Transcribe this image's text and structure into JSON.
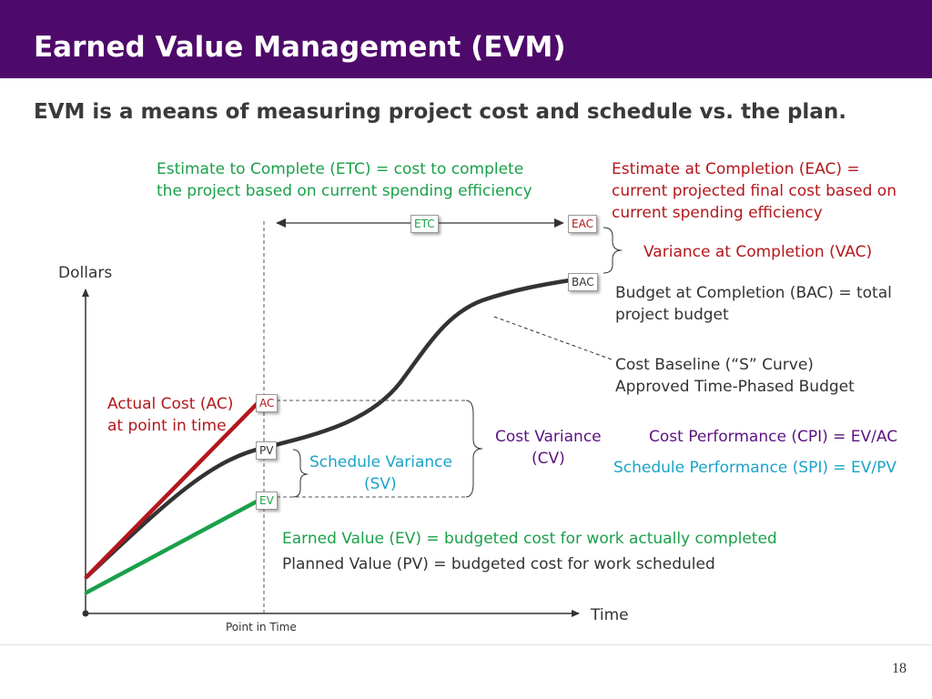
{
  "slide": {
    "title": "Earned Value Management (EVM)",
    "subtitle": "EVM is a means of measuring project cost and schedule vs. the plan.",
    "page_number": "18"
  },
  "labels": {
    "etc_line1": "Estimate to Complete (ETC) = cost to complete",
    "etc_line2": "the project based on current spending efficiency",
    "eac_line1": "Estimate at Completion (EAC) =",
    "eac_line2": "current projected final cost based on",
    "eac_line3": "current spending efficiency",
    "vac": "Variance at Completion (VAC)",
    "bac_line1": "Budget at Completion (BAC) = total",
    "bac_line2": "project budget",
    "baseline_line1": "Cost Baseline (“S” Curve)",
    "baseline_line2": "Approved Time-Phased Budget",
    "ac_line1": "Actual Cost (AC)",
    "ac_line2": "at point in time",
    "sv_line1": "Schedule Variance",
    "sv_line2": "(SV)",
    "cv_line1": "Cost Variance",
    "cv_line2": "(CV)",
    "cpi": "Cost Performance (CPI) = EV/AC",
    "spi": "Schedule Performance (SPI) = EV/PV",
    "ev_def": "Earned Value (EV) = budgeted cost for work actually completed",
    "pv_def": "Planned Value (PV) = budgeted cost for work scheduled",
    "y_axis": "Dollars",
    "x_axis": "Time",
    "point_in_time": "Point in Time"
  },
  "markers": {
    "etc": "ETC",
    "eac": "EAC",
    "bac": "BAC",
    "ac": "AC",
    "pv": "PV",
    "ev": "EV"
  },
  "colors": {
    "header": "#4e0a6a",
    "green": "#1aa04a",
    "red": "#b3171c",
    "purple": "#5b1280",
    "cyan": "#1aa3c7",
    "curve": "#333333"
  }
}
